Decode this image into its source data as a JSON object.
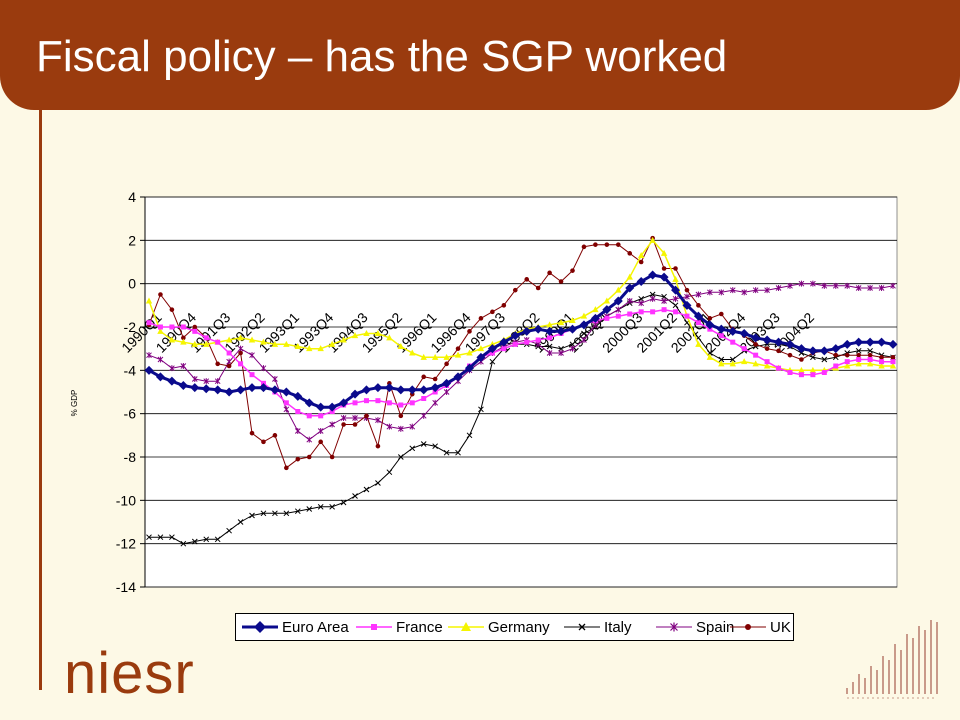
{
  "title": "Fiscal policy – has the SGP worked",
  "logo_text": "niesr",
  "colors": {
    "brand": "#9a3b0e",
    "euro_area": "#0a0a8c",
    "france": "#ff33ff",
    "germany": "#f5f500",
    "italy": "#000000",
    "spain": "#800080",
    "uk": "#800000"
  },
  "chart_data": {
    "type": "line",
    "title": "",
    "xlabel": "",
    "ylabel": "% GDP",
    "ylim": [
      -14,
      4
    ],
    "yticks": [
      4,
      2,
      0,
      -2,
      -4,
      -6,
      -8,
      -10,
      -12,
      -14
    ],
    "grid": true,
    "legend_position": "bottom",
    "x_start": "1990Q1",
    "x_tick_labels": [
      "1990Q1",
      "1990Q4",
      "1991Q3",
      "1992Q2",
      "1993Q1",
      "1993Q4",
      "1994Q3",
      "1995Q2",
      "1996Q1",
      "1996Q4",
      "1997Q3",
      "1998Q2",
      "1999Q1",
      "1999Q4",
      "2000Q3",
      "2001Q2",
      "2002Q1",
      "2002Q4",
      "2003Q3",
      "2004Q2"
    ],
    "series": [
      {
        "name": "Euro Area",
        "marker": "diamond",
        "values": [
          -4,
          -4.3,
          -4.5,
          -4.7,
          -4.8,
          -4.85,
          -4.9,
          -5,
          -4.9,
          -4.8,
          -4.8,
          -4.9,
          -5,
          -5.2,
          -5.5,
          -5.7,
          -5.7,
          -5.5,
          -5.1,
          -4.9,
          -4.8,
          -4.8,
          -4.9,
          -4.9,
          -4.9,
          -4.8,
          -4.6,
          -4.3,
          -3.9,
          -3.4,
          -3,
          -2.7,
          -2.4,
          -2.2,
          -2.1,
          -2.2,
          -2.2,
          -2.1,
          -1.9,
          -1.6,
          -1.2,
          -0.8,
          -0.2,
          0.1,
          0.4,
          0.3,
          -0.3,
          -1,
          -1.5,
          -1.9,
          -2.1,
          -2.2,
          -2.3,
          -2.5,
          -2.6,
          -2.7,
          -2.8,
          -3,
          -3.1,
          -3.1,
          -3,
          -2.8,
          -2.7,
          -2.7,
          -2.7,
          -2.8
        ]
      },
      {
        "name": "France",
        "marker": "square",
        "values": [
          -1.8,
          -2,
          -2,
          -2,
          -2.2,
          -2.5,
          -2.7,
          -3.2,
          -3.7,
          -4.2,
          -4.6,
          -5,
          -5.5,
          -5.9,
          -6.1,
          -6.1,
          -5.9,
          -5.6,
          -5.5,
          -5.4,
          -5.4,
          -5.5,
          -5.6,
          -5.5,
          -5.3,
          -5,
          -4.7,
          -4.3,
          -3.8,
          -3.4,
          -3.2,
          -3,
          -2.8,
          -2.7,
          -2.6,
          -2.5,
          -2.3,
          -2.1,
          -1.9,
          -1.7,
          -1.6,
          -1.5,
          -1.4,
          -1.3,
          -1.3,
          -1.2,
          -1.3,
          -1.5,
          -1.8,
          -2.1,
          -2.4,
          -2.7,
          -3,
          -3.3,
          -3.6,
          -3.9,
          -4.1,
          -4.2,
          -4.2,
          -4.1,
          -3.8,
          -3.6,
          -3.5,
          -3.5,
          -3.6,
          -3.6
        ]
      },
      {
        "name": "Germany",
        "marker": "triangle",
        "values": [
          -0.8,
          -2.2,
          -2.6,
          -2.7,
          -2.8,
          -2.8,
          -2.7,
          -2.6,
          -2.5,
          -2.6,
          -2.7,
          -2.8,
          -2.8,
          -2.9,
          -3,
          -3,
          -2.8,
          -2.6,
          -2.4,
          -2.3,
          -2.3,
          -2.5,
          -2.9,
          -3.2,
          -3.4,
          -3.4,
          -3.4,
          -3.3,
          -3.2,
          -3,
          -2.8,
          -2.6,
          -2.3,
          -2.1,
          -2,
          -1.9,
          -1.8,
          -1.7,
          -1.5,
          -1.2,
          -0.8,
          -0.3,
          0.3,
          1.3,
          2,
          1.4,
          0.2,
          -1.5,
          -2.8,
          -3.4,
          -3.7,
          -3.7,
          -3.6,
          -3.7,
          -3.8,
          -3.9,
          -4,
          -4,
          -4,
          -4,
          -3.9,
          -3.8,
          -3.7,
          -3.7,
          -3.8,
          -3.8
        ]
      },
      {
        "name": "Italy",
        "marker": "x",
        "values": [
          -11.7,
          -11.7,
          -11.7,
          -12,
          -11.9,
          -11.8,
          -11.8,
          -11.4,
          -11,
          -10.7,
          -10.6,
          -10.6,
          -10.6,
          -10.5,
          -10.4,
          -10.3,
          -10.3,
          -10.1,
          -9.8,
          -9.5,
          -9.2,
          -8.7,
          -8,
          -7.6,
          -7.4,
          -7.5,
          -7.8,
          -7.8,
          -7,
          -5.8,
          -3.6,
          -3,
          -2.8,
          -2.8,
          -2.9,
          -2.9,
          -3,
          -2.8,
          -2.3,
          -2,
          -1.5,
          -1.2,
          -0.9,
          -0.7,
          -0.5,
          -0.6,
          -1,
          -1.8,
          -2.5,
          -3.2,
          -3.5,
          -3.5,
          -3.1,
          -2.9,
          -2.8,
          -2.8,
          -2.9,
          -3.2,
          -3.4,
          -3.5,
          -3.4,
          -3.2,
          -3.1,
          -3.1,
          -3.3,
          -3.4
        ]
      },
      {
        "name": "Spain",
        "marker": "star",
        "values": [
          -3.3,
          -3.5,
          -3.9,
          -3.8,
          -4.4,
          -4.5,
          -4.5,
          -3.6,
          -3,
          -3.3,
          -3.9,
          -4.4,
          -5.8,
          -6.8,
          -7.2,
          -6.8,
          -6.5,
          -6.2,
          -6.2,
          -6.2,
          -6.3,
          -6.6,
          -6.7,
          -6.6,
          -6.1,
          -5.5,
          -5,
          -4.5,
          -4,
          -3.6,
          -3.2,
          -2.9,
          -2.7,
          -2.6,
          -2.8,
          -3.2,
          -3.2,
          -3,
          -2.6,
          -1.9,
          -1.5,
          -1.2,
          -0.8,
          -0.9,
          -0.7,
          -0.8,
          -0.7,
          -0.6,
          -0.5,
          -0.4,
          -0.4,
          -0.3,
          -0.4,
          -0.3,
          -0.3,
          -0.2,
          -0.1,
          0,
          0,
          -0.1,
          -0.1,
          -0.1,
          -0.2,
          -0.2,
          -0.2,
          -0.1
        ]
      },
      {
        "name": "UK",
        "marker": "dot",
        "values": [
          -1.9,
          -0.5,
          -1.2,
          -2.5,
          -2,
          -2.5,
          -3.7,
          -3.8,
          -3.2,
          -6.9,
          -7.3,
          -7,
          -8.5,
          -8.1,
          -8,
          -7.3,
          -8,
          -6.5,
          -6.5,
          -6.1,
          -7.5,
          -4.6,
          -6.1,
          -5.1,
          -4.3,
          -4.4,
          -3.7,
          -3,
          -2.2,
          -1.6,
          -1.3,
          -1,
          -0.3,
          0.2,
          -0.2,
          0.5,
          0.1,
          0.6,
          1.7,
          1.8,
          1.8,
          1.8,
          1.4,
          1,
          2.1,
          0.7,
          0.7,
          -0.3,
          -1,
          -1.6,
          -1.4,
          -2.1,
          -2.4,
          -2.8,
          -3,
          -3.1,
          -3.3,
          -3.5,
          -3.2,
          -3.1,
          -3.3,
          -3.3,
          -3.3,
          -3.3,
          -3.4,
          -3.4
        ]
      }
    ]
  }
}
